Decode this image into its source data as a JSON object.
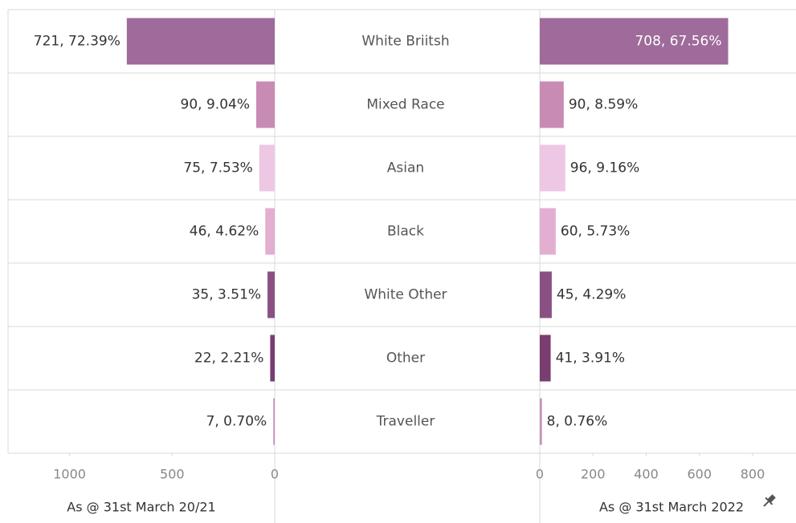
{
  "chart_data": {
    "type": "bar",
    "orientation": "horizontal",
    "categories": [
      "White Briitsh",
      "Mixed Race",
      "Asian",
      "Black",
      "White Other",
      "Other",
      "Traveller"
    ],
    "colors": [
      "#9e6b9a",
      "#c88bb3",
      "#edc7e3",
      "#e2aed1",
      "#8a5084",
      "#7a3d70",
      "#c690b8"
    ],
    "series": [
      {
        "name": "As @ 31st March 20/21",
        "reversed": true,
        "values": [
          721,
          90,
          75,
          46,
          35,
          22,
          7
        ],
        "value_labels": [
          "721, 72.39%",
          "90, 9.04%",
          "75, 7.53%",
          "46, 4.62%",
          "35, 3.51%",
          "22, 2.21%",
          "7, 0.70%"
        ],
        "xlim": [
          0,
          1300
        ],
        "xticks": [
          1000,
          500,
          0
        ]
      },
      {
        "name": "As @ 31st March 2022",
        "reversed": false,
        "values": [
          708,
          90,
          96,
          60,
          45,
          41,
          8
        ],
        "value_labels": [
          "708, 67.56%",
          "90, 8.59%",
          "96, 9.16%",
          "60, 5.73%",
          "45, 4.29%",
          "41, 3.91%",
          "8, 0.76%"
        ],
        "xlim": [
          0,
          960
        ],
        "xticks": [
          0,
          200,
          400,
          600,
          800
        ]
      }
    ]
  }
}
